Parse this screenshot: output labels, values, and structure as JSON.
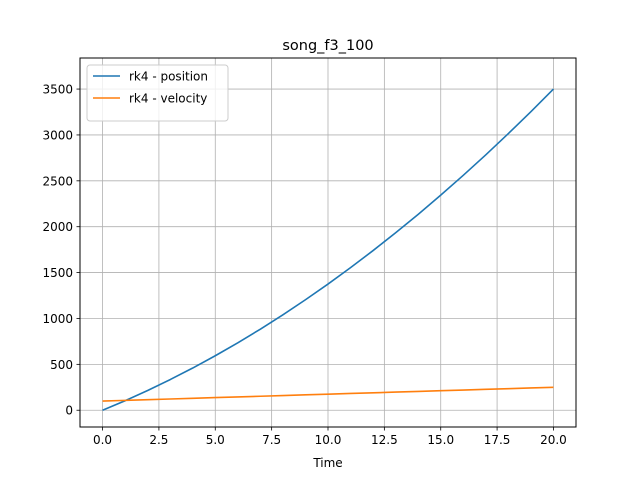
{
  "chart_data": {
    "type": "line",
    "title": "song_f3_100",
    "xlabel": "Time",
    "ylabel": "",
    "xlim": [
      -1.0,
      21.0
    ],
    "ylim": [
      -182.75,
      3838.5
    ],
    "xticks": [
      0.0,
      2.5,
      5.0,
      7.5,
      10.0,
      12.5,
      15.0,
      17.5,
      20.0
    ],
    "xtick_labels": [
      "0.0",
      "2.5",
      "5.0",
      "7.5",
      "10.0",
      "12.5",
      "15.0",
      "17.5",
      "20.0"
    ],
    "yticks": [
      0,
      500,
      1000,
      1500,
      2000,
      2500,
      3000,
      3500
    ],
    "ytick_labels": [
      "0",
      "500",
      "1000",
      "1500",
      "2000",
      "2500",
      "3000",
      "3500"
    ],
    "grid": true,
    "legend_position": "upper-left",
    "x": [
      0,
      1,
      2,
      3,
      4,
      5,
      6,
      7,
      8,
      9,
      10,
      11,
      12,
      13,
      14,
      15,
      16,
      17,
      18,
      19,
      20
    ],
    "series": [
      {
        "name": "rk4 - position",
        "color": "#1f77b4",
        "values": [
          0,
          103.75,
          215,
          333.75,
          460,
          593.75,
          735,
          883.75,
          1040,
          1203.75,
          1375,
          1553.75,
          1740,
          1933.75,
          2135,
          2343.75,
          2560,
          2783.75,
          3015,
          3253.75,
          3500
        ]
      },
      {
        "name": "rk4 - velocity",
        "color": "#ff7f0e",
        "values": [
          100,
          107.5,
          115,
          122.5,
          130,
          137.5,
          145,
          152.5,
          160,
          167.5,
          175,
          182.5,
          190,
          197.5,
          205,
          212.5,
          220,
          227.5,
          235,
          242.5,
          250
        ]
      }
    ]
  }
}
